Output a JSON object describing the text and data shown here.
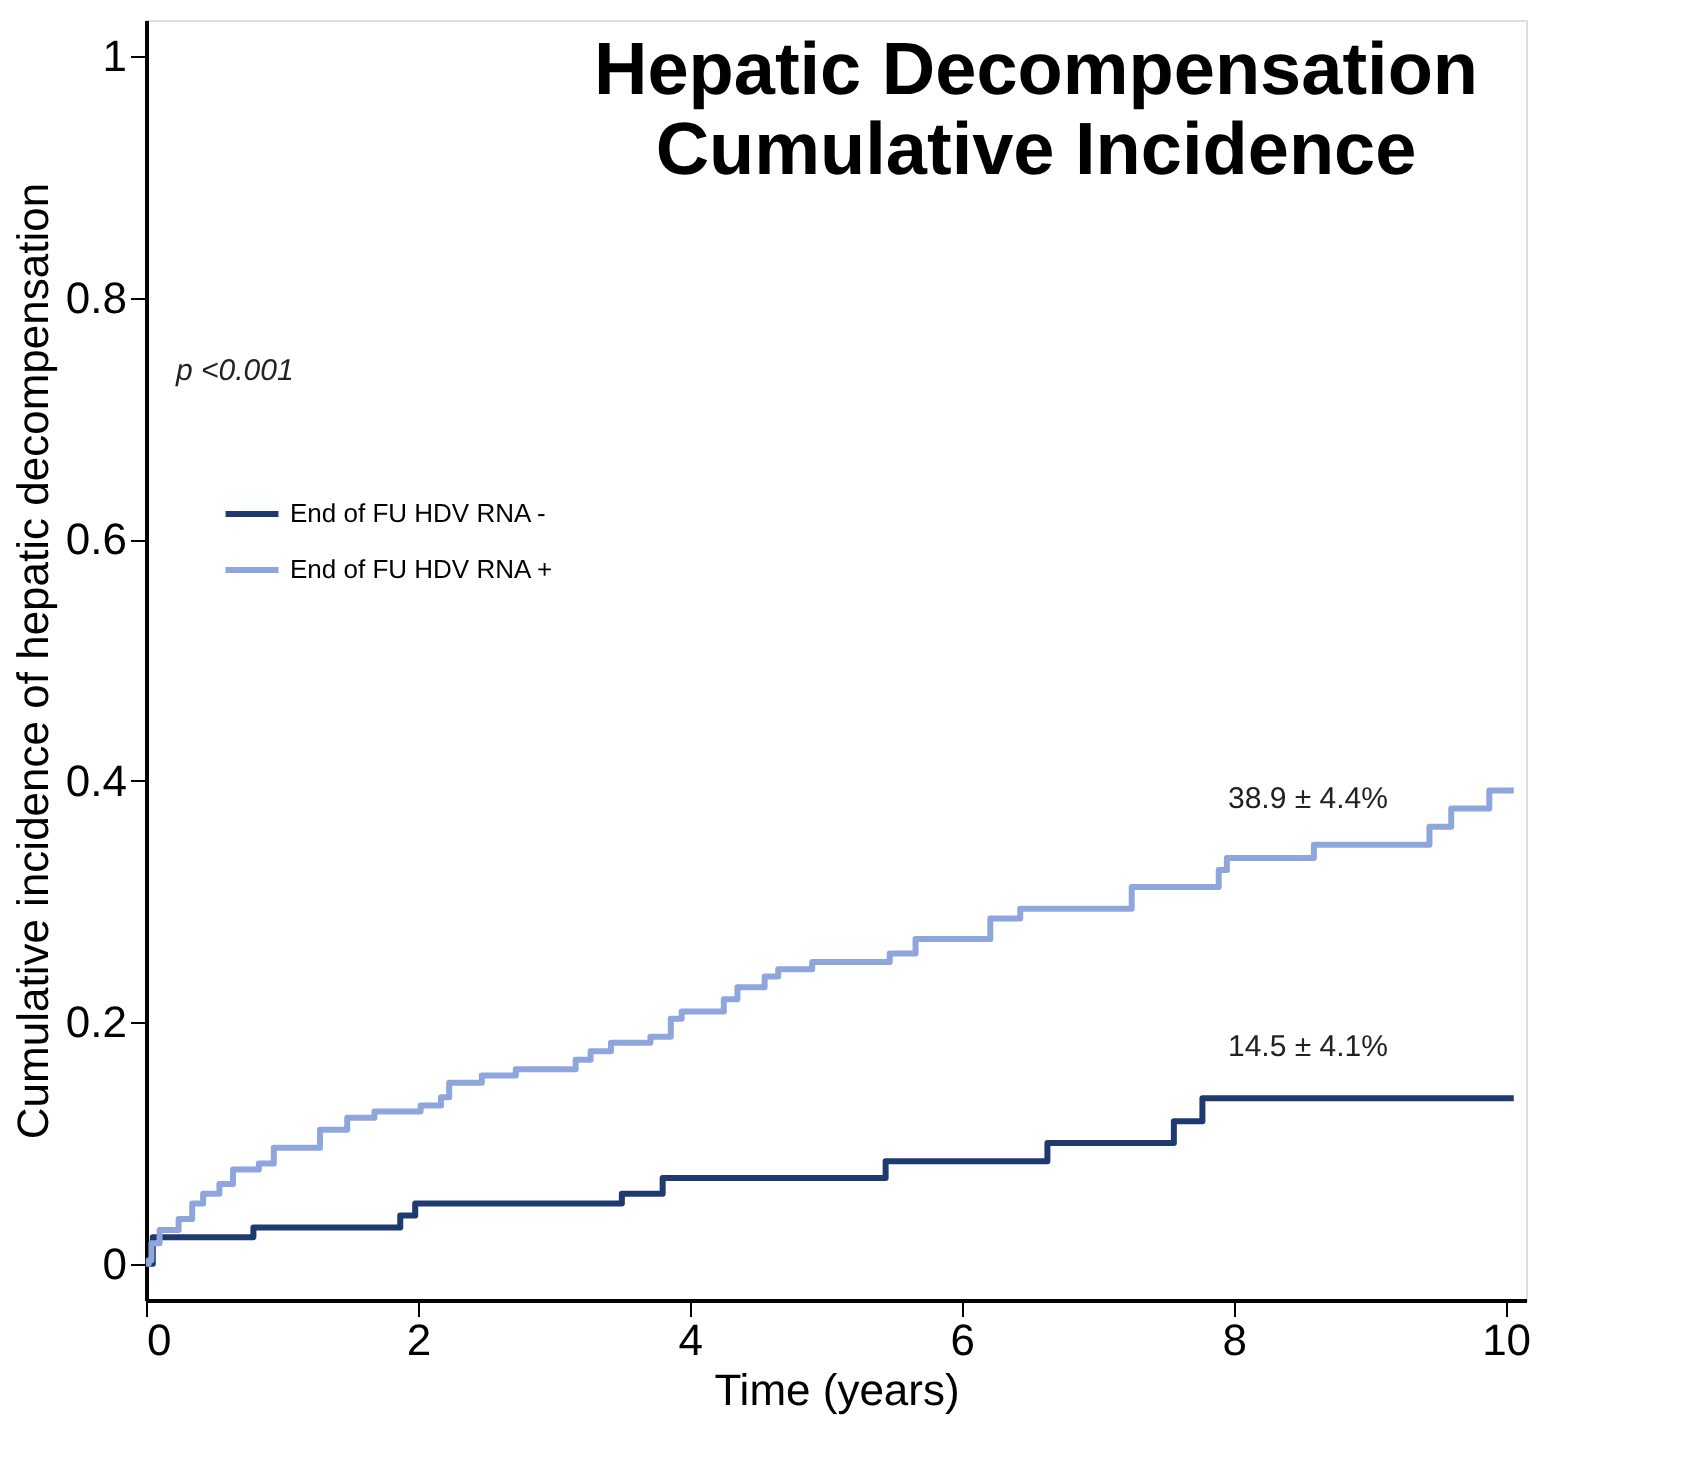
{
  "chart_data": {
    "type": "step",
    "title": "Hepatic Decompensation Cumulative Incidence",
    "xlabel": "Time (years)",
    "ylabel": "Cumulative incidence of hepatic decompensation",
    "series": [
      {
        "name": "End of FU HDV RNA -",
        "color": "#1f3a6e",
        "x": [
          0,
          0.05,
          0.79,
          1.87,
          1.98,
          3.5,
          3.8,
          5.44,
          6.63,
          7.56,
          7.77,
          10.06
        ],
        "values": [
          0,
          0.022,
          0.03,
          0.04,
          0.05,
          0.058,
          0.071,
          0.085,
          0.1,
          0.118,
          0.137,
          0.137
        ]
      },
      {
        "name": "End of FU HDV RNA +",
        "color": "#8ea6dc",
        "x": [
          0,
          0.02,
          0.04,
          0.1,
          0.24,
          0.34,
          0.42,
          0.54,
          0.64,
          0.83,
          0.94,
          1.28,
          1.48,
          1.68,
          2.02,
          2.17,
          2.23,
          2.47,
          2.72,
          3.16,
          3.27,
          3.42,
          3.71,
          3.86,
          3.94,
          4.25,
          4.35,
          4.55,
          4.65,
          4.9,
          5.47,
          5.66,
          6.21,
          6.43,
          7.25,
          7.89,
          7.95,
          8.59,
          9.44,
          9.6,
          9.88,
          10.06
        ],
        "values": [
          0,
          0.003,
          0.017,
          0.028,
          0.037,
          0.05,
          0.058,
          0.066,
          0.078,
          0.083,
          0.096,
          0.111,
          0.121,
          0.126,
          0.131,
          0.138,
          0.15,
          0.156,
          0.161,
          0.169,
          0.176,
          0.183,
          0.188,
          0.203,
          0.209,
          0.219,
          0.229,
          0.238,
          0.244,
          0.25,
          0.257,
          0.269,
          0.286,
          0.294,
          0.312,
          0.326,
          0.336,
          0.347,
          0.362,
          0.377,
          0.392,
          0.392
        ]
      }
    ],
    "annotations": [
      "p <0.001",
      "38.9 ± 4.4%",
      "14.5 ± 4.1%"
    ],
    "xlim": [
      0,
      10.15
    ],
    "ylim": [
      -0.03,
      1.03
    ],
    "xticks": [
      0,
      2,
      4,
      6,
      8,
      10
    ],
    "yticks": [
      0,
      0.2,
      0.4,
      0.6,
      0.8,
      1
    ],
    "grid": false,
    "legend": "top left",
    "marker": "none",
    "line_style": "solid"
  }
}
